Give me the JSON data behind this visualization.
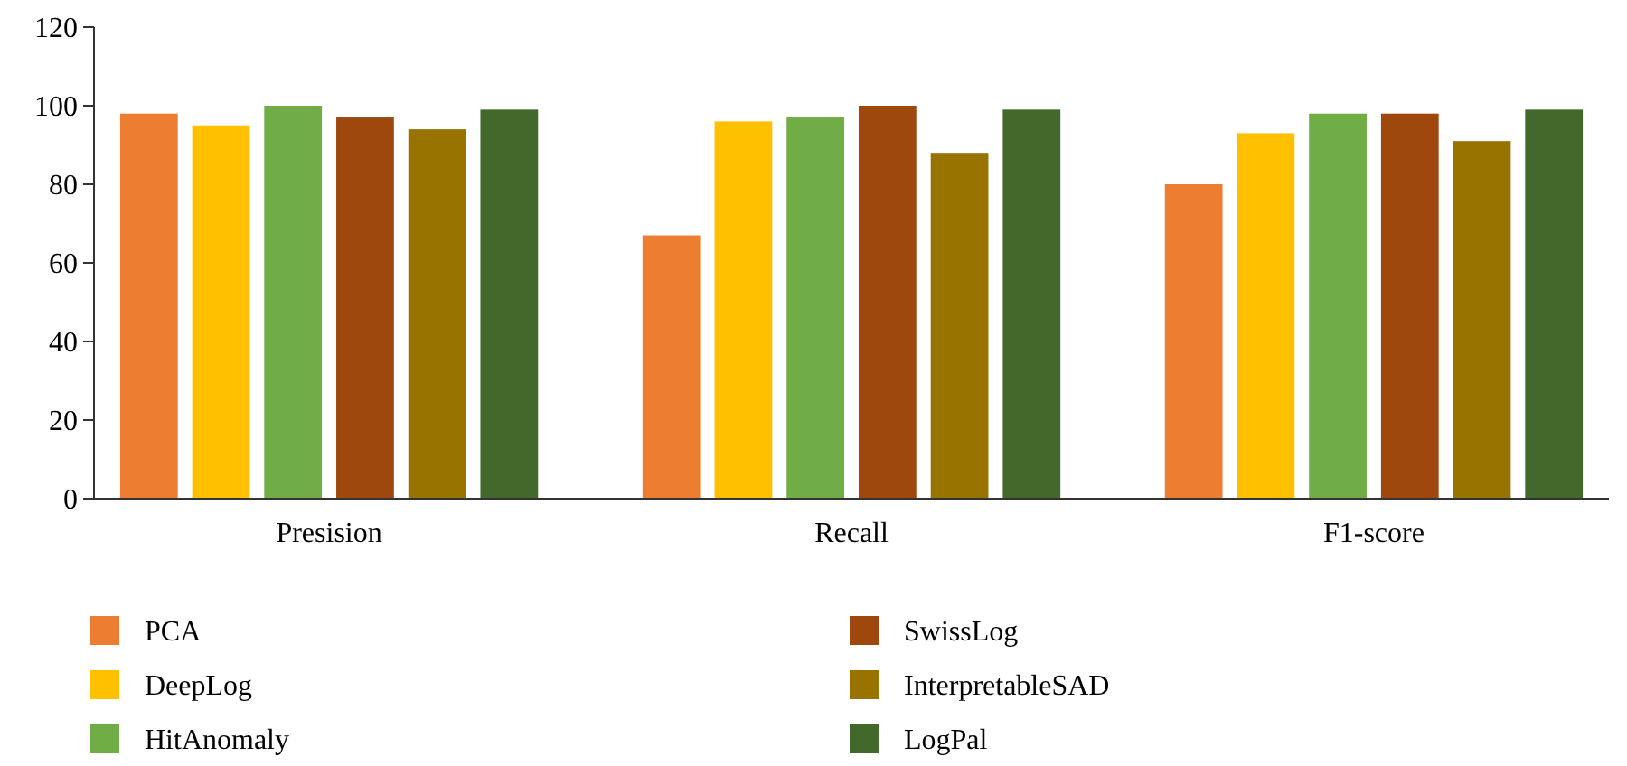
{
  "chart_data": {
    "type": "bar",
    "categories": [
      "Presision",
      "Recall",
      "F1-score"
    ],
    "series": [
      {
        "name": "PCA",
        "color": "#ed7d31",
        "values": [
          98,
          67,
          80
        ]
      },
      {
        "name": "DeepLog",
        "color": "#ffc000",
        "values": [
          95,
          96,
          93
        ]
      },
      {
        "name": "HitAnomaly",
        "color": "#70ad47",
        "values": [
          100,
          97,
          98
        ]
      },
      {
        "name": "SwissLog",
        "color": "#9e480e",
        "values": [
          97,
          100,
          98
        ]
      },
      {
        "name": "InterpretableSAD",
        "color": "#997300",
        "values": [
          94,
          88,
          91
        ]
      },
      {
        "name": "LogPal",
        "color": "#43682b",
        "values": [
          99,
          99,
          99
        ]
      }
    ],
    "ylim": [
      0,
      120
    ],
    "yticks": [
      0,
      20,
      40,
      60,
      80,
      100,
      120
    ],
    "grid": false,
    "legend": "bottom"
  }
}
